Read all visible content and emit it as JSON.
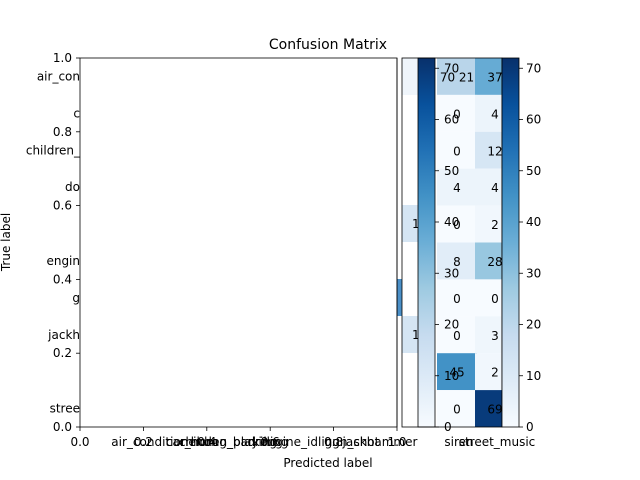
{
  "chart_data": {
    "type": "heatmap",
    "title": "Confusion Matrix",
    "xlabel": "Predicted label",
    "ylabel": "True label",
    "main_axes": {
      "xlim": [
        0,
        1
      ],
      "ylim": [
        0,
        1
      ],
      "x_ticks": [
        "0.0",
        "0.2",
        "0.4",
        "0.6",
        "0.8",
        "1.0"
      ],
      "y_ticks": [
        "0.0",
        "0.2",
        "0.4",
        "0.6",
        "0.8",
        "1.0"
      ]
    },
    "x_category_labels": [
      "air_conditioner",
      "car_horn",
      "children_playing",
      "dog_bark",
      "drilling",
      "engine_idling",
      "gun_shot",
      "jackhammer",
      "siren",
      "street_music"
    ],
    "y_category_labels_visible": [
      "air_con",
      "c",
      "children_",
      "do",
      "engin",
      "g",
      "jackh",
      "stree"
    ],
    "visible_cells": [
      {
        "row": 0,
        "col": 8,
        "value": 21,
        "shown": "70 21",
        "overlap": "70"
      },
      {
        "row": 0,
        "col": 9,
        "value": 37,
        "shown": "37"
      },
      {
        "row": 1,
        "col": 8,
        "value": 0,
        "shown": "0"
      },
      {
        "row": 1,
        "col": 9,
        "value": 4,
        "shown": "4"
      },
      {
        "row": 2,
        "col": 8,
        "value": 0,
        "shown": "0"
      },
      {
        "row": 2,
        "col": 9,
        "value": 12,
        "shown": "12"
      },
      {
        "row": 3,
        "col": 8,
        "value": 4,
        "shown": "4"
      },
      {
        "row": 3,
        "col": 9,
        "value": 4,
        "shown": "4"
      },
      {
        "row": 4,
        "col": 8,
        "value": 0,
        "shown": "0"
      },
      {
        "row": 4,
        "col": 9,
        "value": 2,
        "shown": "2"
      },
      {
        "row": 5,
        "col": 8,
        "value": 8,
        "shown": "8"
      },
      {
        "row": 5,
        "col": 9,
        "value": 28,
        "shown": "28"
      },
      {
        "row": 6,
        "col": 8,
        "value": 0,
        "shown": "0"
      },
      {
        "row": 6,
        "col": 9,
        "value": 0,
        "shown": "0"
      },
      {
        "row": 7,
        "col": 8,
        "value": 0,
        "shown": "0"
      },
      {
        "row": 7,
        "col": 9,
        "value": 3,
        "shown": "3"
      },
      {
        "row": 8,
        "col": 8,
        "value": 45,
        "shown": "45"
      },
      {
        "row": 8,
        "col": 9,
        "value": 2,
        "shown": "2"
      },
      {
        "row": 9,
        "col": 8,
        "value": 0,
        "shown": "0"
      },
      {
        "row": 9,
        "col": 9,
        "value": 69,
        "shown": "69"
      }
    ],
    "partial_left_labels": [
      "1",
      "1"
    ],
    "colorbar": {
      "range": [
        0,
        72
      ],
      "ticks": [
        "0",
        "10",
        "20",
        "30",
        "40",
        "50",
        "60",
        "70"
      ],
      "colormap": "Blues"
    },
    "inner_colorbar": {
      "ticks": [
        "0",
        "10",
        "20",
        "30",
        "40",
        "50",
        "60",
        "70"
      ]
    }
  }
}
